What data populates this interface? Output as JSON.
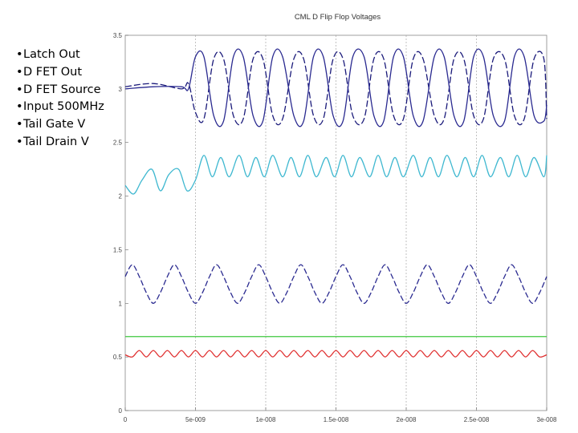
{
  "legend_bullets": [
    "Latch Out",
    "D FET Out",
    "D FET Source",
    "Input 500MHz",
    "Tail Gate V",
    "Tail Drain V"
  ],
  "chart_data": {
    "type": "line",
    "title": "CML D Flip Flop Voltages",
    "xlabel": "",
    "ylabel": "",
    "xlim": [
      0,
      3e-08
    ],
    "ylim": [
      0,
      3.5
    ],
    "grid": true,
    "x_ticks": [
      {
        "value": 0,
        "label": "0"
      },
      {
        "value": 5e-09,
        "label": "5e-009"
      },
      {
        "value": 1e-08,
        "label": "1e-008"
      },
      {
        "value": 1.5e-08,
        "label": "1.5e-008"
      },
      {
        "value": 2e-08,
        "label": "2e-008"
      },
      {
        "value": 2.5e-08,
        "label": "2.5e-008"
      },
      {
        "value": 3e-08,
        "label": "3e-008"
      }
    ],
    "y_ticks": [
      {
        "value": 0,
        "label": "0"
      },
      {
        "value": 0.5,
        "label": "0.5"
      },
      {
        "value": 1,
        "label": "1"
      },
      {
        "value": 1.5,
        "label": "1.5"
      },
      {
        "value": 2,
        "label": "2"
      },
      {
        "value": 2.5,
        "label": "2.5"
      },
      {
        "value": 3,
        "label": "3"
      },
      {
        "value": 3.5,
        "label": "3.5"
      }
    ],
    "series": [
      {
        "color": "#1a1a7a",
        "dash": "8,3",
        "x": [
          0,
          2e-09,
          4e-09,
          4.5e-09,
          5e-09,
          5.6e-09,
          6.3e-09,
          7e-09,
          7.7e-09,
          8.4e-09,
          9.1e-09,
          9.8e-09,
          1.05e-08,
          1.12e-08,
          1.2e-08,
          1.27e-08,
          1.34e-08,
          1.41e-08,
          1.48e-08,
          1.55e-08,
          1.62e-08,
          1.7e-08,
          1.77e-08,
          1.84e-08,
          1.91e-08,
          1.98e-08,
          2.05e-08,
          2.12e-08,
          2.2e-08,
          2.27e-08,
          2.34e-08,
          2.41e-08,
          2.48e-08,
          2.55e-08,
          2.62e-08,
          2.7e-08,
          2.77e-08,
          2.84e-08,
          2.91e-08,
          2.98e-08,
          3e-08
        ],
        "y": [
          3.02,
          3.05,
          3.0,
          3.05,
          2.78,
          2.72,
          3.28,
          3.28,
          2.75,
          2.72,
          3.28,
          3.28,
          2.75,
          2.72,
          3.28,
          3.28,
          2.75,
          2.72,
          3.28,
          3.28,
          2.75,
          2.72,
          3.28,
          3.28,
          2.75,
          2.72,
          3.28,
          3.28,
          2.75,
          2.72,
          3.28,
          3.28,
          2.75,
          2.72,
          3.28,
          3.28,
          2.75,
          2.72,
          3.28,
          3.28,
          2.72
        ]
      },
      {
        "color": "#2a2a90",
        "dash": "",
        "x": [
          0,
          2e-09,
          4e-09,
          4.5e-09,
          5e-09,
          5.6e-09,
          6.3e-09,
          7e-09,
          7.7e-09,
          8.4e-09,
          9.1e-09,
          9.8e-09,
          1.05e-08,
          1.12e-08,
          1.2e-08,
          1.27e-08,
          1.34e-08,
          1.41e-08,
          1.48e-08,
          1.55e-08,
          1.62e-08,
          1.7e-08,
          1.77e-08,
          1.84e-08,
          1.91e-08,
          1.98e-08,
          2.05e-08,
          2.12e-08,
          2.2e-08,
          2.27e-08,
          2.34e-08,
          2.41e-08,
          2.48e-08,
          2.55e-08,
          2.62e-08,
          2.7e-08,
          2.77e-08,
          2.84e-08,
          2.91e-08,
          2.98e-08,
          3e-08
        ],
        "y": [
          3.0,
          3.02,
          3.02,
          3.0,
          3.3,
          3.3,
          2.75,
          2.7,
          3.3,
          3.3,
          2.75,
          2.7,
          3.3,
          3.3,
          2.75,
          2.7,
          3.3,
          3.3,
          2.75,
          2.7,
          3.3,
          3.3,
          2.75,
          2.7,
          3.3,
          3.3,
          2.75,
          2.7,
          3.3,
          3.3,
          2.75,
          2.7,
          3.3,
          3.3,
          2.75,
          2.7,
          3.3,
          3.3,
          2.75,
          2.7,
          2.85
        ]
      },
      {
        "color": "#3fb8d0",
        "dash": "",
        "x": [
          0,
          6e-10,
          1.2e-09,
          1.9e-09,
          2.5e-09,
          3.1e-09,
          3.8e-09,
          4.4e-09,
          5e-09,
          5.6e-09,
          6.2e-09,
          6.8e-09,
          7.4e-09,
          8.1e-09,
          8.7e-09,
          9.3e-09,
          9.9e-09,
          1.05e-08,
          1.12e-08,
          1.18e-08,
          1.24e-08,
          1.3e-08,
          1.36e-08,
          1.43e-08,
          1.49e-08,
          1.55e-08,
          1.61e-08,
          1.67e-08,
          1.74e-08,
          1.8e-08,
          1.86e-08,
          1.92e-08,
          1.98e-08,
          2.05e-08,
          2.11e-08,
          2.17e-08,
          2.23e-08,
          2.29e-08,
          2.36e-08,
          2.42e-08,
          2.48e-08,
          2.54e-08,
          2.6e-08,
          2.67e-08,
          2.73e-08,
          2.79e-08,
          2.85e-08,
          2.91e-08,
          2.98e-08,
          3e-08
        ],
        "y": [
          2.1,
          2.02,
          2.15,
          2.25,
          2.05,
          2.2,
          2.25,
          2.05,
          2.15,
          2.38,
          2.18,
          2.36,
          2.18,
          2.38,
          2.18,
          2.36,
          2.18,
          2.38,
          2.18,
          2.36,
          2.18,
          2.38,
          2.18,
          2.36,
          2.18,
          2.38,
          2.18,
          2.36,
          2.18,
          2.38,
          2.18,
          2.36,
          2.18,
          2.38,
          2.18,
          2.36,
          2.18,
          2.38,
          2.18,
          2.36,
          2.18,
          2.38,
          2.18,
          2.36,
          2.18,
          2.38,
          2.18,
          2.36,
          2.18,
          2.38
        ]
      },
      {
        "color": "#2a2a90",
        "dash": "7,3",
        "x": [
          0,
          5e-10,
          1e-09,
          1.5e-09,
          2e-09,
          2.5e-09,
          3e-09,
          3.5e-09,
          4e-09,
          4.5e-09,
          5e-09,
          5.5e-09,
          6e-09,
          6.5e-09,
          7e-09,
          7.5e-09,
          8e-09,
          8.5e-09,
          9e-09,
          9.5e-09,
          1e-08,
          1.05e-08,
          1.1e-08,
          1.15e-08,
          1.2e-08,
          1.25e-08,
          1.3e-08,
          1.35e-08,
          1.4e-08,
          1.45e-08,
          1.5e-08,
          1.55e-08,
          1.6e-08,
          1.65e-08,
          1.7e-08,
          1.75e-08,
          1.8e-08,
          1.85e-08,
          1.9e-08,
          1.95e-08,
          2e-08,
          2.05e-08,
          2.1e-08,
          2.15e-08,
          2.2e-08,
          2.25e-08,
          2.3e-08,
          2.35e-08,
          2.4e-08,
          2.45e-08,
          2.5e-08,
          2.55e-08,
          2.6e-08,
          2.65e-08,
          2.7e-08,
          2.75e-08,
          2.8e-08,
          2.85e-08,
          2.9e-08,
          2.95e-08,
          3e-08
        ],
        "y": [
          1.25,
          1.36,
          1.25,
          1.1,
          1.0,
          1.1,
          1.25,
          1.36,
          1.25,
          1.1,
          1.0,
          1.1,
          1.25,
          1.36,
          1.25,
          1.1,
          1.0,
          1.1,
          1.25,
          1.36,
          1.25,
          1.1,
          1.0,
          1.1,
          1.25,
          1.36,
          1.25,
          1.1,
          1.0,
          1.1,
          1.25,
          1.36,
          1.25,
          1.1,
          1.0,
          1.1,
          1.25,
          1.36,
          1.25,
          1.1,
          1.0,
          1.1,
          1.25,
          1.36,
          1.25,
          1.1,
          1.0,
          1.1,
          1.25,
          1.36,
          1.25,
          1.1,
          1.0,
          1.1,
          1.25,
          1.36,
          1.25,
          1.1,
          1.0,
          1.1,
          1.25
        ]
      },
      {
        "color": "#3ec83e",
        "dash": "",
        "x": [
          0,
          3e-08
        ],
        "y": [
          0.69,
          0.69
        ]
      },
      {
        "color": "#e03030",
        "dash": "",
        "x": [
          0,
          5e-10,
          1e-09,
          1.5e-09,
          2e-09,
          2.5e-09,
          3e-09,
          3.5e-09,
          4e-09,
          4.5e-09,
          5e-09,
          5.5e-09,
          6e-09,
          6.5e-09,
          7e-09,
          7.5e-09,
          8e-09,
          8.5e-09,
          9e-09,
          9.5e-09,
          1e-08,
          1.05e-08,
          1.1e-08,
          1.15e-08,
          1.2e-08,
          1.25e-08,
          1.3e-08,
          1.35e-08,
          1.4e-08,
          1.45e-08,
          1.5e-08,
          1.55e-08,
          1.6e-08,
          1.65e-08,
          1.7e-08,
          1.75e-08,
          1.8e-08,
          1.85e-08,
          1.9e-08,
          1.95e-08,
          2e-08,
          2.05e-08,
          2.1e-08,
          2.15e-08,
          2.2e-08,
          2.25e-08,
          2.3e-08,
          2.35e-08,
          2.4e-08,
          2.45e-08,
          2.5e-08,
          2.55e-08,
          2.6e-08,
          2.65e-08,
          2.7e-08,
          2.75e-08,
          2.8e-08,
          2.85e-08,
          2.9e-08,
          2.95e-08,
          3e-08
        ],
        "y": [
          0.52,
          0.5,
          0.56,
          0.5,
          0.56,
          0.5,
          0.56,
          0.5,
          0.56,
          0.5,
          0.56,
          0.5,
          0.56,
          0.5,
          0.56,
          0.5,
          0.56,
          0.5,
          0.56,
          0.5,
          0.56,
          0.5,
          0.56,
          0.5,
          0.56,
          0.5,
          0.56,
          0.5,
          0.56,
          0.5,
          0.56,
          0.5,
          0.56,
          0.5,
          0.56,
          0.5,
          0.56,
          0.5,
          0.56,
          0.5,
          0.56,
          0.5,
          0.56,
          0.5,
          0.56,
          0.5,
          0.56,
          0.5,
          0.56,
          0.5,
          0.56,
          0.5,
          0.56,
          0.5,
          0.56,
          0.5,
          0.56,
          0.5,
          0.56,
          0.5,
          0.52
        ]
      }
    ]
  }
}
